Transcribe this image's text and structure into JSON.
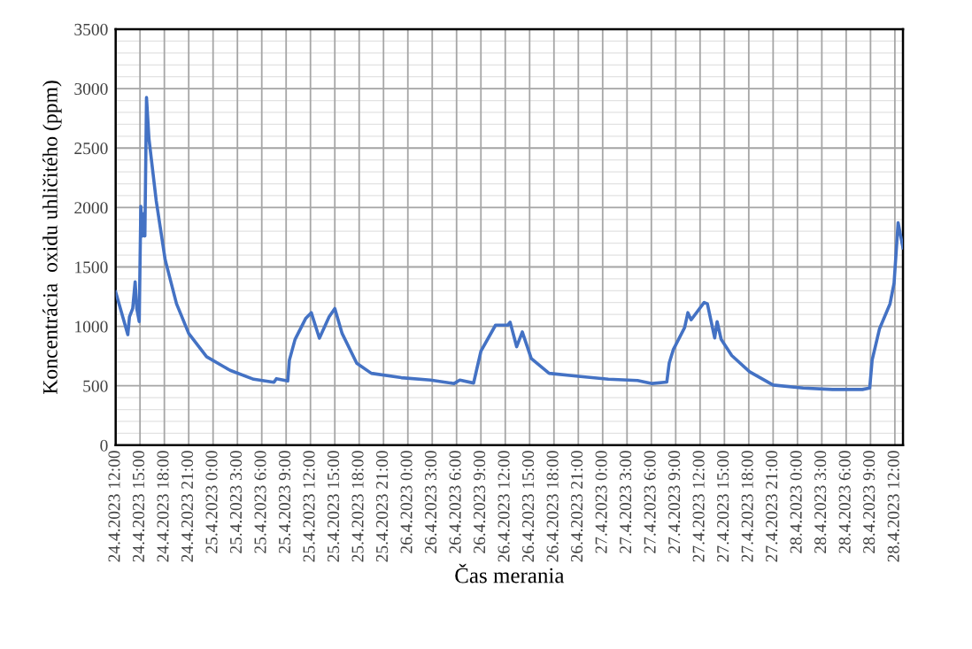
{
  "chart_data": {
    "type": "line",
    "xlabel": "Čas merania",
    "ylabel": "Koncentrácia  oxidu uhličitého (ppm)",
    "series": [
      {
        "color": "#4472c4",
        "x": [
          "2023-04-24T12:00",
          "2023-04-24T13:30",
          "2023-04-24T13:42",
          "2023-04-24T14:06",
          "2023-04-24T14:24",
          "2023-04-24T14:36",
          "2023-04-24T14:54",
          "2023-04-24T15:06",
          "2023-04-24T15:18",
          "2023-04-24T15:30",
          "2023-04-24T15:36",
          "2023-04-24T15:48",
          "2023-04-24T16:06",
          "2023-04-24T17:00",
          "2023-04-24T18:06",
          "2023-04-24T19:30",
          "2023-04-24T21:00",
          "2023-04-24T23:12",
          "2023-04-25T02:06",
          "2023-04-25T05:00",
          "2023-04-25T07:30",
          "2023-04-25T07:48",
          "2023-04-25T09:12",
          "2023-04-25T09:24",
          "2023-04-25T10:06",
          "2023-04-25T11:24",
          "2023-04-25T12:06",
          "2023-04-25T13:06",
          "2023-04-25T14:18",
          "2023-04-25T15:00",
          "2023-04-25T15:54",
          "2023-04-25T17:42",
          "2023-04-25T19:30",
          "2023-04-25T23:12",
          "2023-04-26T02:48",
          "2023-04-26T05:42",
          "2023-04-26T06:24",
          "2023-04-26T08:06",
          "2023-04-26T08:30",
          "2023-04-26T09:00",
          "2023-04-26T10:48",
          "2023-04-26T12:18",
          "2023-04-26T12:36",
          "2023-04-26T13:24",
          "2023-04-26T14:06",
          "2023-04-26T15:12",
          "2023-04-26T17:24",
          "2023-04-26T21:00",
          "2023-04-27T00:42",
          "2023-04-27T04:18",
          "2023-04-27T06:06",
          "2023-04-27T07:54",
          "2023-04-27T08:12",
          "2023-04-27T08:42",
          "2023-04-27T10:06",
          "2023-04-27T10:30",
          "2023-04-27T10:54",
          "2023-04-27T12:30",
          "2023-04-27T12:54",
          "2023-04-27T13:48",
          "2023-04-27T14:06",
          "2023-04-27T14:36",
          "2023-04-27T15:54",
          "2023-04-27T18:06",
          "2023-04-27T21:00",
          "2023-04-28T00:42",
          "2023-04-28T04:18",
          "2023-04-28T08:00",
          "2023-04-28T08:54",
          "2023-04-28T09:12",
          "2023-04-28T10:06",
          "2023-04-28T11:24",
          "2023-04-28T11:54",
          "2023-04-28T12:24",
          "2023-04-28T13:00"
        ],
        "values": [
          1290,
          930,
          1080,
          1150,
          1375,
          1150,
          1040,
          2010,
          1760,
          1950,
          1760,
          2925,
          2580,
          2055,
          1560,
          1190,
          940,
          745,
          630,
          555,
          530,
          560,
          540,
          715,
          890,
          1065,
          1115,
          900,
          1080,
          1150,
          940,
          690,
          605,
          568,
          548,
          519,
          548,
          523,
          643,
          791,
          1010,
          1010,
          1035,
          829,
          953,
          730,
          605,
          580,
          556,
          544,
          519,
          531,
          692,
          804,
          990,
          1115,
          1055,
          1201,
          1190,
          903,
          1040,
          891,
          755,
          618,
          506,
          481,
          469,
          469,
          481,
          717,
          978,
          1189,
          1363,
          1871,
          1660
        ]
      }
    ],
    "xlim": [
      "2023-04-24T12:00",
      "2023-04-28T13:00"
    ],
    "xticks": [
      {
        "value": "2023-04-24T12:00",
        "label": "24.4.2023 12:00"
      },
      {
        "value": "2023-04-24T15:00",
        "label": "24.4.2023 15:00"
      },
      {
        "value": "2023-04-24T18:00",
        "label": "24.4.2023 18:00"
      },
      {
        "value": "2023-04-24T21:00",
        "label": "24.4.2023 21:00"
      },
      {
        "value": "2023-04-25T00:00",
        "label": "25.4.2023 0:00"
      },
      {
        "value": "2023-04-25T03:00",
        "label": "25.4.2023 3:00"
      },
      {
        "value": "2023-04-25T06:00",
        "label": "25.4.2023 6:00"
      },
      {
        "value": "2023-04-25T09:00",
        "label": "25.4.2023 9:00"
      },
      {
        "value": "2023-04-25T12:00",
        "label": "25.4.2023 12:00"
      },
      {
        "value": "2023-04-25T15:00",
        "label": "25.4.2023 15:00"
      },
      {
        "value": "2023-04-25T18:00",
        "label": "25.4.2023 18:00"
      },
      {
        "value": "2023-04-25T21:00",
        "label": "25.4.2023 21:00"
      },
      {
        "value": "2023-04-26T00:00",
        "label": "26.4.2023 0:00"
      },
      {
        "value": "2023-04-26T03:00",
        "label": "26.4.2023 3:00"
      },
      {
        "value": "2023-04-26T06:00",
        "label": "26.4.2023 6:00"
      },
      {
        "value": "2023-04-26T09:00",
        "label": "26.4.2023 9:00"
      },
      {
        "value": "2023-04-26T12:00",
        "label": "26.4.2023 12:00"
      },
      {
        "value": "2023-04-26T15:00",
        "label": "26.4.2023 15:00"
      },
      {
        "value": "2023-04-26T18:00",
        "label": "26.4.2023 18:00"
      },
      {
        "value": "2023-04-26T21:00",
        "label": "26.4.2023 21:00"
      },
      {
        "value": "2023-04-27T00:00",
        "label": "27.4.2023 0:00"
      },
      {
        "value": "2023-04-27T03:00",
        "label": "27.4.2023 3:00"
      },
      {
        "value": "2023-04-27T06:00",
        "label": "27.4.2023 6:00"
      },
      {
        "value": "2023-04-27T09:00",
        "label": "27.4.2023 9:00"
      },
      {
        "value": "2023-04-27T12:00",
        "label": "27.4.2023 12:00"
      },
      {
        "value": "2023-04-27T15:00",
        "label": "27.4.2023 15:00"
      },
      {
        "value": "2023-04-27T18:00",
        "label": "27.4.2023 18:00"
      },
      {
        "value": "2023-04-27T21:00",
        "label": "27.4.2023 21:00"
      },
      {
        "value": "2023-04-28T00:00",
        "label": "28.4.2023 0:00"
      },
      {
        "value": "2023-04-28T03:00",
        "label": "28.4.2023 3:00"
      },
      {
        "value": "2023-04-28T06:00",
        "label": "28.4.2023 6:00"
      },
      {
        "value": "2023-04-28T09:00",
        "label": "28.4.2023 9:00"
      },
      {
        "value": "2023-04-28T12:00",
        "label": "28.4.2023 12:00"
      }
    ],
    "ylim": [
      0,
      3500
    ],
    "yticks": [
      0,
      500,
      1000,
      1500,
      2000,
      2500,
      3000,
      3500
    ],
    "grid": true,
    "legend": false,
    "marker": "none",
    "line_style": "solid"
  }
}
